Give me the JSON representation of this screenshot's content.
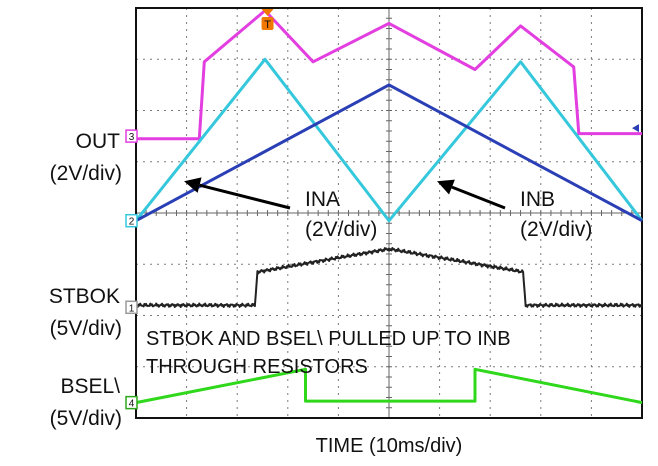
{
  "chart_data": {
    "type": "line",
    "title": "",
    "xlabel": "TIME (10ms/div)",
    "ylabel": "",
    "grid": true,
    "x_divisions": 10,
    "y_divisions": 8,
    "xlim": [
      0,
      10
    ],
    "ylim": [
      0,
      8
    ],
    "trigger_marker": {
      "label": "T",
      "x": 2.6,
      "color": "#f07800"
    },
    "right_marker": {
      "color": "#2a3fb5"
    },
    "channel_labels": [
      {
        "id": "OUT",
        "text": "OUT",
        "scale": "(2V/div)",
        "marker": "3",
        "marker_level": 5.5,
        "color": "#e23ee0"
      },
      {
        "id": "INA_ch",
        "text": "",
        "scale": "",
        "marker": "2",
        "marker_level": 3.85,
        "color": "#35c8dd"
      },
      {
        "id": "STBOK",
        "text": "STBOK",
        "scale": "(5V/div)",
        "marker": "1",
        "marker_level": 2.16,
        "color": "#9a9a9a"
      },
      {
        "id": "BSEL",
        "text": "BSEL\\",
        "scale": "(5V/div)",
        "marker": "4",
        "marker_level": 0.3,
        "color": "#2ca81a"
      }
    ],
    "annotations": [
      {
        "id": "ina",
        "text": "INA",
        "scale": "(2V/div)",
        "arrow_to": [
          0.95,
          4.62
        ]
      },
      {
        "id": "inb",
        "text": "INB",
        "scale": "(2V/div)",
        "arrow_to": [
          5.95,
          4.62
        ]
      }
    ],
    "note_lines": [
      "STBOK AND BSEL\\ PULLED UP TO INB",
      "THROUGH RESISTORS"
    ],
    "series": [
      {
        "name": "OUT",
        "color": "#e23ee0",
        "width": 3,
        "x": [
          0,
          1.25,
          1.35,
          2.55,
          3.5,
          5.0,
          6.7,
          7.6,
          8.65,
          8.75,
          10
        ],
        "y": [
          5.45,
          5.45,
          6.95,
          7.95,
          6.95,
          7.7,
          6.8,
          7.65,
          6.85,
          5.55,
          5.55
        ]
      },
      {
        "name": "INA",
        "color": "#35c8dd",
        "width": 3,
        "x": [
          0,
          2.55,
          5.0,
          7.6,
          10
        ],
        "y": [
          3.85,
          7.0,
          3.85,
          6.95,
          3.85
        ]
      },
      {
        "name": "INB",
        "color": "#2a3fb5",
        "width": 3,
        "x": [
          0,
          5.0,
          10
        ],
        "y": [
          3.85,
          6.5,
          3.85
        ]
      },
      {
        "name": "STBOK",
        "color": "#222222",
        "width": 2,
        "noisy": true,
        "x": [
          0,
          2.35,
          2.4,
          5.0,
          7.65,
          7.7,
          10
        ],
        "y": [
          2.2,
          2.2,
          2.85,
          3.3,
          2.85,
          2.2,
          2.2
        ]
      },
      {
        "name": "BSEL\\",
        "color": "#2fd81a",
        "width": 3,
        "x": [
          0,
          3.35,
          3.35,
          6.7,
          6.7,
          10
        ],
        "y": [
          0.3,
          0.95,
          0.33,
          0.33,
          0.95,
          0.3
        ]
      }
    ]
  }
}
